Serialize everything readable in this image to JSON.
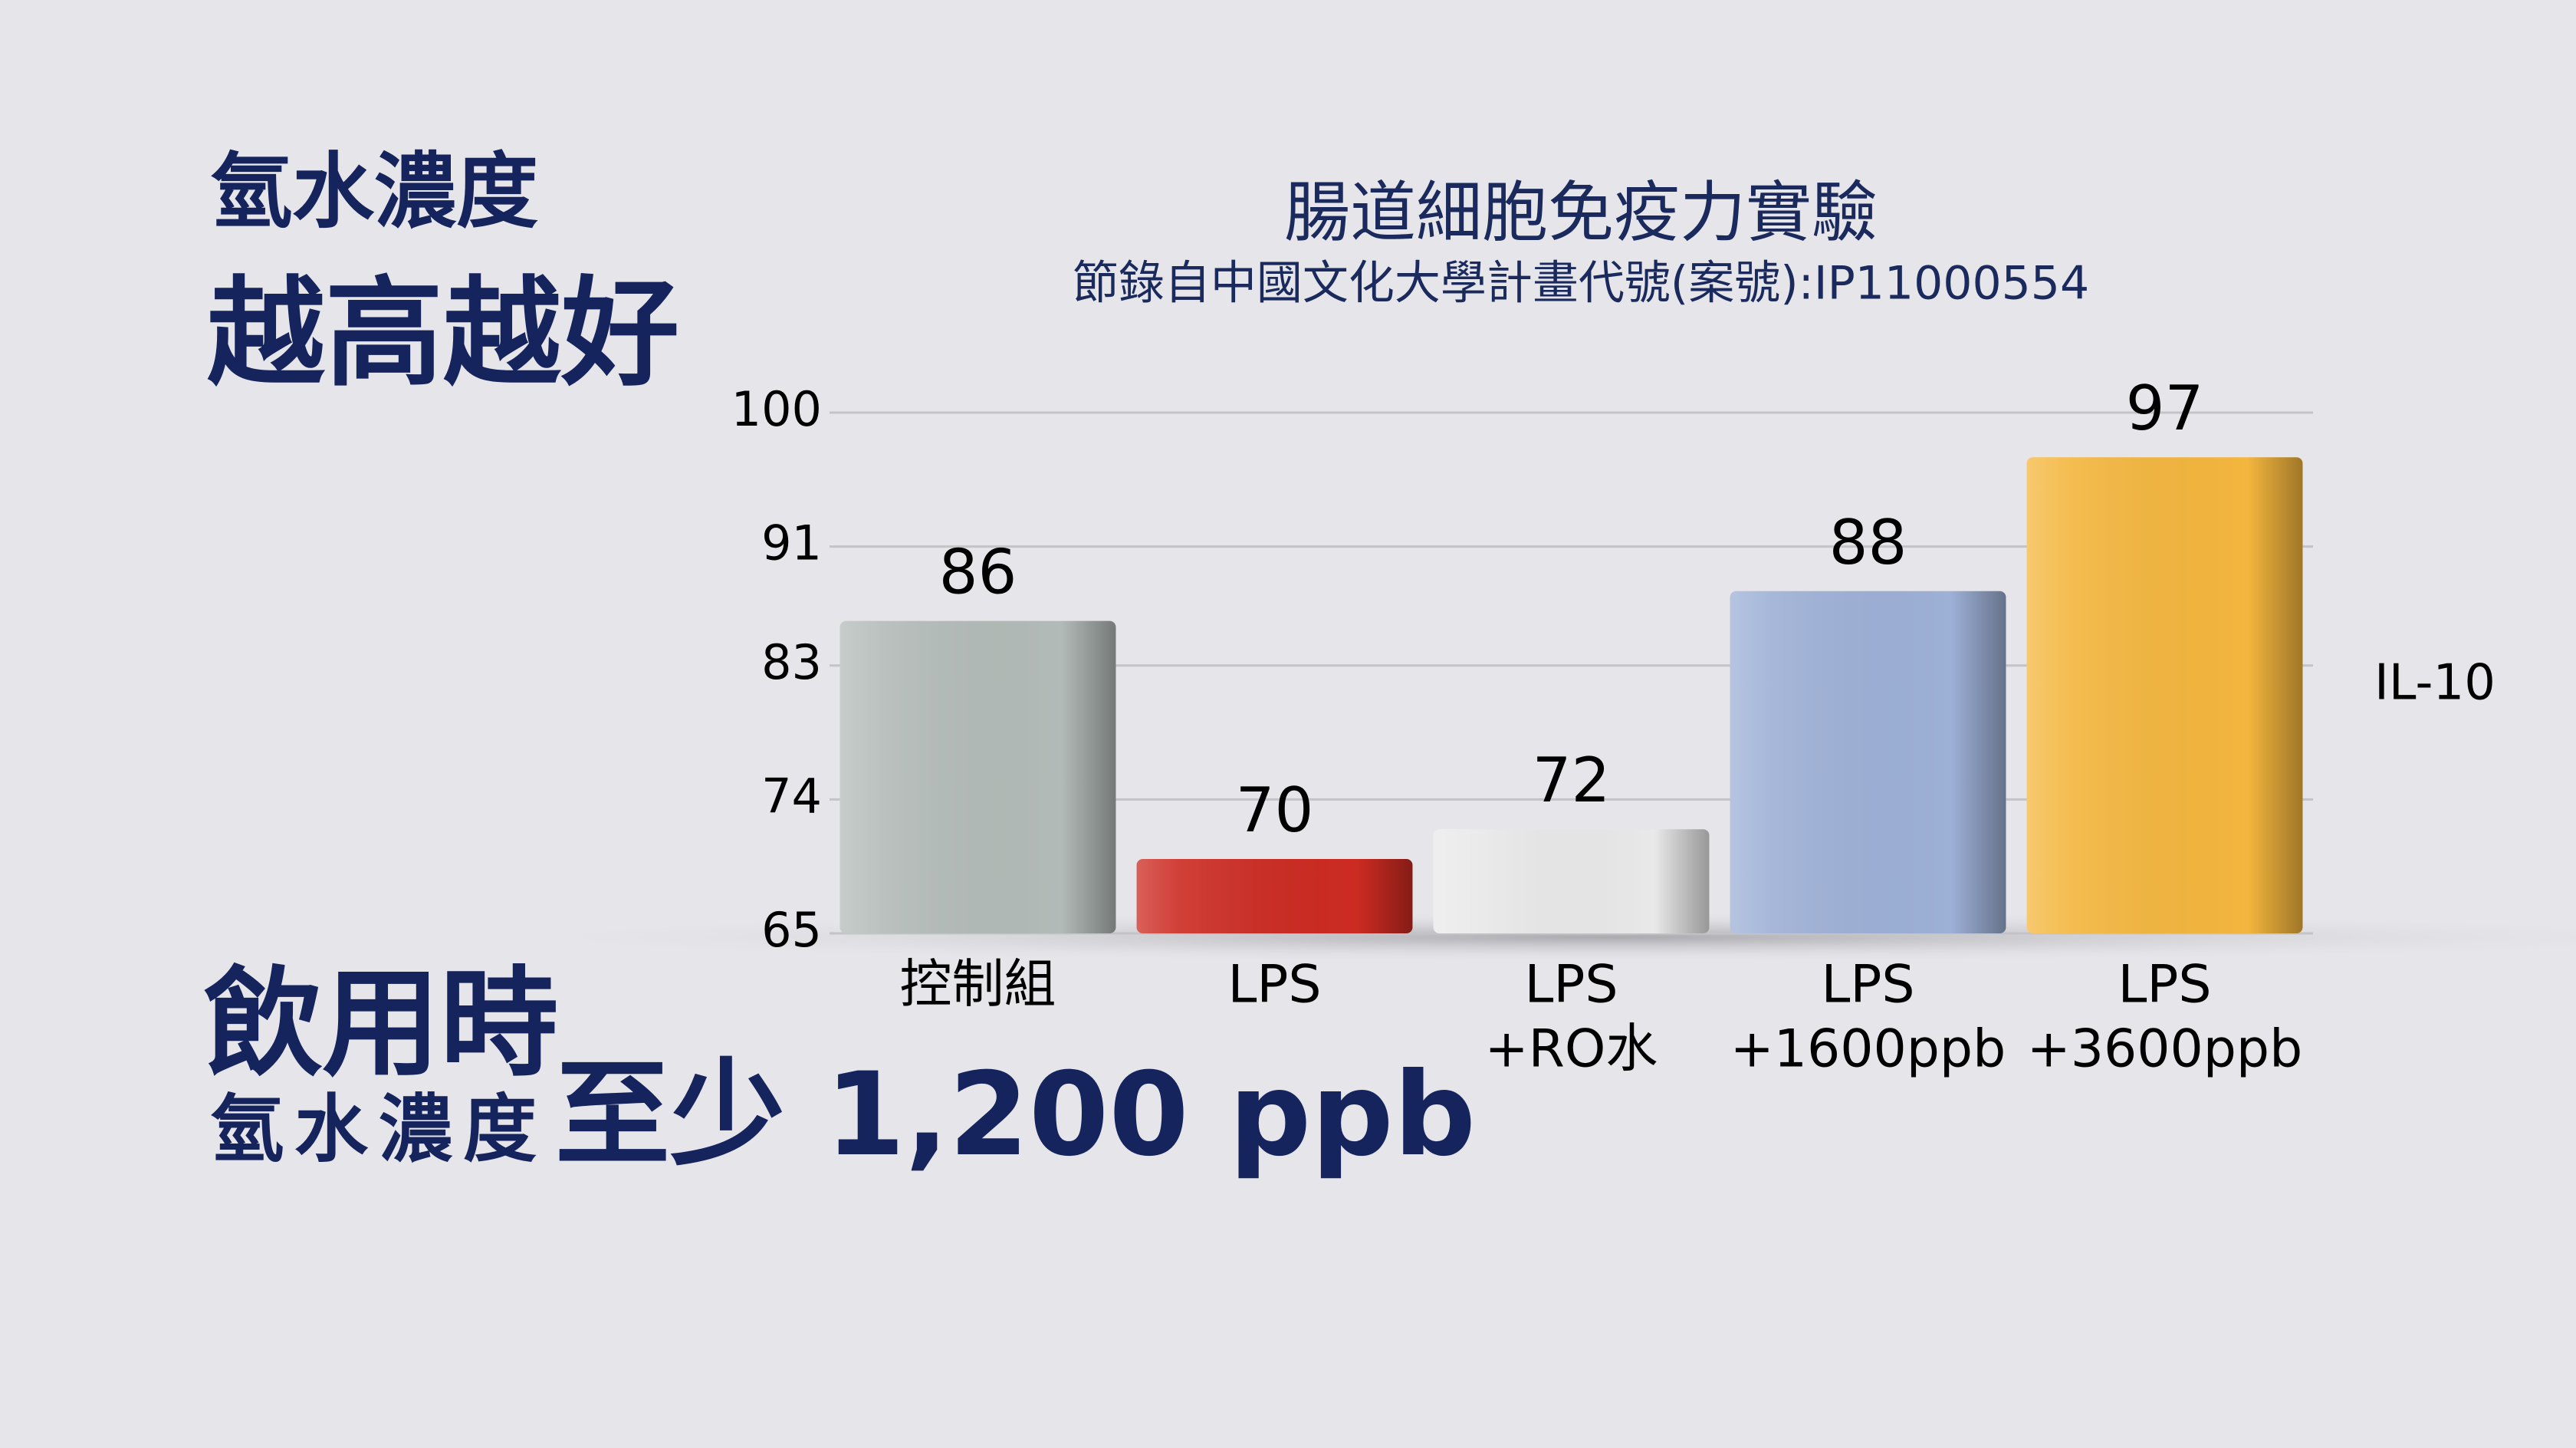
{
  "slide": {
    "heading": "氫水濃度",
    "tagline": "越高越好",
    "note_lead": "飲用時",
    "note_label": "氫水濃度",
    "note_value": "至少 1,200 ppb"
  },
  "chart_data": {
    "type": "bar",
    "title": "腸道細胞免疫力實驗",
    "subtitle": "節錄自中國文化大學計畫代號(案號):IP11000554",
    "categories": [
      [
        "控制組"
      ],
      [
        "LPS"
      ],
      [
        "LPS",
        "+RO水"
      ],
      [
        "LPS",
        "+1600ppb"
      ],
      [
        "LPS",
        "+3600ppb"
      ]
    ],
    "series": [
      {
        "name": "IL-10",
        "values": [
          86,
          70,
          72,
          88,
          97
        ]
      }
    ],
    "colors": [
      "#b3bbb8",
      "#cc2b22",
      "#e9e9e9",
      "#9db0d6",
      "#f4b63e"
    ],
    "ylim": [
      65,
      100
    ],
    "yticks": [
      65,
      74,
      83,
      91,
      100
    ],
    "grid": true
  }
}
